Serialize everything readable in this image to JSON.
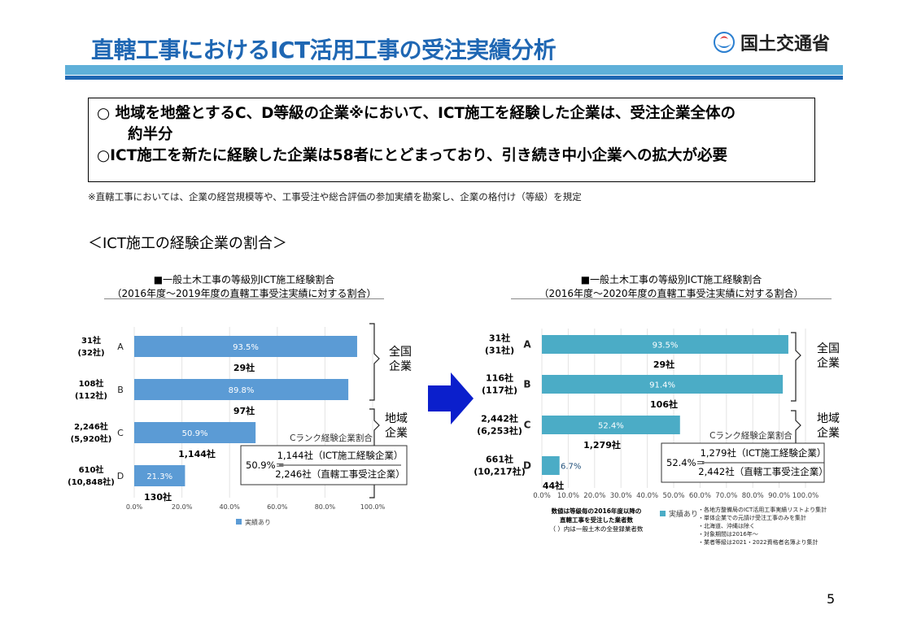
{
  "header": {
    "title": "直轄工事におけるICT活用工事の受注実績分析",
    "logo_text": "国土交通省"
  },
  "summary": {
    "line1": "○ 地域を地盤とするC、D等級の企業※において、ICT施工を経験した企業は、受注企業全体の",
    "line1_cont": "約半分",
    "line2": "○ICT施工を新たに経験した企業は58者にとどまっており、引き続き中小企業への拡大が必要"
  },
  "footnote": "※直轄工事においては、企業の経営規模等や、工事受注や総合評価の参加実績を勘案し、企業の格付け（等級）を規定",
  "section_heading": "＜ICT施工の経験企業の割合＞",
  "page_number": "5",
  "colors": {
    "left_bar": "#5b9bd5",
    "right_bar": "#4bacc6",
    "arrow": "#0b1fcc"
  },
  "chart_data": [
    {
      "type": "bar",
      "orientation": "horizontal",
      "title": "■一般土木工事の等級別ICT施工経験割合",
      "subtitle": "（2016年度～2019年度の直轄工事受注実績に対する割合）",
      "categories": [
        "A",
        "B",
        "C",
        "D"
      ],
      "values": [
        93.5,
        89.8,
        50.9,
        21.3
      ],
      "value_labels": [
        "93.5%",
        "89.8%",
        "50.9%",
        "21.3%"
      ],
      "count_labels": [
        "29社",
        "97社",
        "1,144社",
        "130社"
      ],
      "companies": [
        [
          "31社",
          "(32社)"
        ],
        [
          "108社",
          "(112社)"
        ],
        [
          "2,246社",
          "(5,920社)"
        ],
        [
          "610社",
          "(10,848社)"
        ]
      ],
      "xlim": [
        0,
        100
      ],
      "xticks": [
        "0.0%",
        "20.0%",
        "40.0%",
        "60.0%",
        "80.0%",
        "100.0%"
      ],
      "legend": "実績あり",
      "groups": [
        [
          "全国",
          "企業"
        ],
        [
          "地域",
          "企業"
        ]
      ],
      "c_rank_title": "Cランク経験企業割合",
      "formula": {
        "lhs": "50.9%＝",
        "numerator": "1,144社（ICT施工経験企業）",
        "denominator": "2,246社（直轄工事受注企業）"
      }
    },
    {
      "type": "bar",
      "orientation": "horizontal",
      "title": "■一般土木工事の等級別ICT施工経験割合",
      "subtitle": "（2016年度～2020年度の直轄工事受注実績に対する割合）",
      "categories": [
        "A",
        "B",
        "C",
        "D"
      ],
      "values": [
        93.5,
        91.4,
        52.4,
        6.7
      ],
      "value_labels": [
        "93.5%",
        "91.4%",
        "52.4%",
        "6.7%"
      ],
      "count_labels": [
        "29社",
        "106社",
        "1,279社",
        "44社"
      ],
      "companies": [
        [
          "31社",
          "(31社)"
        ],
        [
          "116社",
          "(117社)"
        ],
        [
          "2,442社",
          "(6,253社)"
        ],
        [
          "661社",
          "(10,217社)"
        ]
      ],
      "xlim": [
        0,
        100
      ],
      "xticks": [
        "0.0%",
        "10.0%",
        "20.0%",
        "30.0%",
        "40.0%",
        "50.0%",
        "60.0%",
        "70.0%",
        "80.0%",
        "90.0%",
        "100.0%"
      ],
      "legend": "実績あり",
      "groups": [
        [
          "全国",
          "企業"
        ],
        [
          "地域",
          "企業"
        ]
      ],
      "c_rank_title": "Cランク経験企業割合",
      "formula": {
        "lhs": "52.4%＝",
        "numerator": "1,279社（ICT施工経験企業）",
        "denominator": "2,442社（直轄工事受注企業）"
      },
      "note_left": [
        "数値は等級毎の2016年度以降の",
        "直轄工事を受注した業者数",
        "（ ）内は一般土木の全登録業者数"
      ],
      "notes_right": [
        "・各地方整備局のICT活用工事実績リストより集計",
        "・単体企業での元請け受注工事のみを集計",
        "・北海道、沖縄は除く",
        "・対象期間は2016年～",
        "・業者等級は2021・2022資格者名簿より集計"
      ]
    }
  ]
}
